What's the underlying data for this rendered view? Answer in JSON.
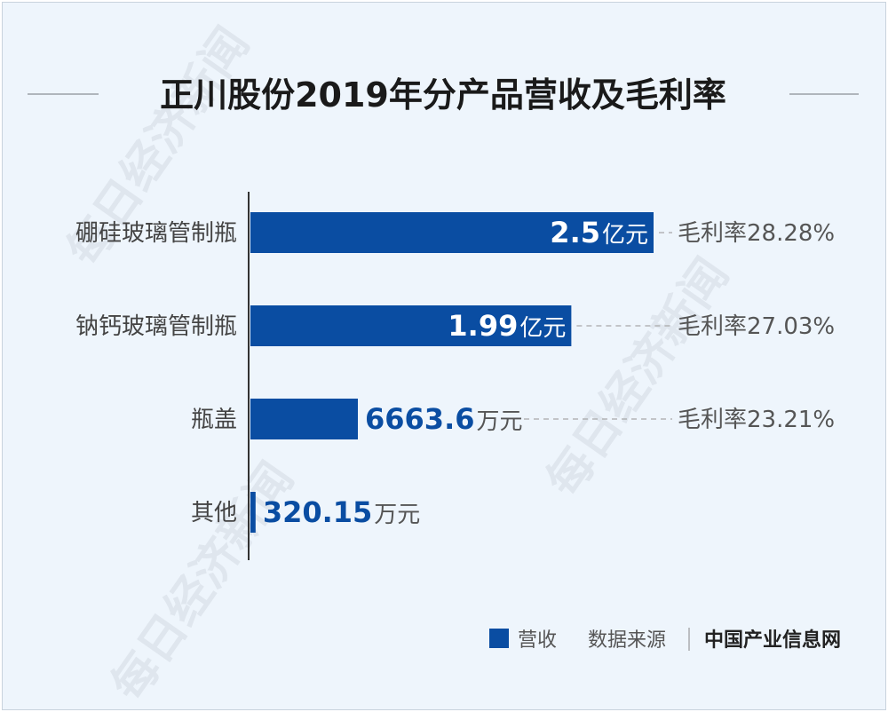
{
  "title": "正川股份2019年分产品营收及毛利率",
  "watermark": "每日经济新闻",
  "legend": {
    "series_label": "营收",
    "source_label": "数据来源",
    "source_name": "中国产业信息网"
  },
  "colors": {
    "bar": "#0a4da2",
    "background": "#eef5fc"
  },
  "chart_data": {
    "type": "bar",
    "orientation": "horizontal",
    "categories": [
      "硼硅玻璃管制瓶",
      "钠钙玻璃管制瓶",
      "瓶盖",
      "其他"
    ],
    "series": [
      {
        "name": "营收",
        "values_wan_yuan": [
          25000,
          19900,
          6663.6,
          320.15
        ],
        "labels": [
          {
            "num": "2.5",
            "unit": "亿元"
          },
          {
            "num": "1.99",
            "unit": "亿元"
          },
          {
            "num": "6663.6",
            "unit": "万元"
          },
          {
            "num": "320.15",
            "unit": "万元"
          }
        ]
      }
    ],
    "gross_margin": [
      "毛利率28.28%",
      "毛利率27.03%",
      "毛利率23.21%",
      null
    ],
    "xlim": [
      0,
      25000
    ],
    "grid": false,
    "legend_position": "bottom-right"
  }
}
